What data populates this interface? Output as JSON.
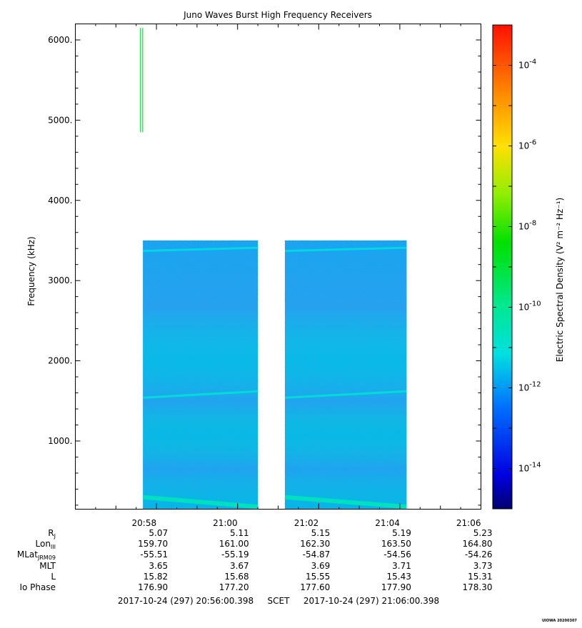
{
  "chart_data": {
    "type": "heatmap",
    "title": "Juno Waves Burst High Frequency Receivers",
    "ylabel": "Frequency (kHz)",
    "ylim": [
      150,
      6200
    ],
    "y_ticks": [
      {
        "value": 1000,
        "label": "1000."
      },
      {
        "value": 2000,
        "label": "2000."
      },
      {
        "value": 3000,
        "label": "3000."
      },
      {
        "value": 4000,
        "label": "4000."
      },
      {
        "value": 5000,
        "label": "5000."
      },
      {
        "value": 6000,
        "label": "6000."
      }
    ],
    "x_ticks": [
      "20:58",
      "21:00",
      "21:02",
      "21:04",
      "21:06"
    ],
    "ephemeris": {
      "labels": [
        {
          "main": "R",
          "sub": "J"
        },
        {
          "main": "Lon",
          "sub": "III"
        },
        {
          "main": "MLat",
          "sub": "JRM09"
        },
        {
          "main": "MLT",
          "sub": ""
        },
        {
          "main": "L",
          "sub": ""
        },
        {
          "main": "Io Phase",
          "sub": ""
        }
      ],
      "rows": [
        [
          "5.07",
          "5.11",
          "5.15",
          "5.19",
          "5.23"
        ],
        [
          "159.70",
          "161.00",
          "162.30",
          "163.50",
          "164.80"
        ],
        [
          "-55.51",
          "-55.19",
          "-54.87",
          "-54.56",
          "-54.26"
        ],
        [
          "3.65",
          "3.67",
          "3.69",
          "3.71",
          "3.73"
        ],
        [
          "15.82",
          "15.68",
          "15.55",
          "15.43",
          "15.31"
        ],
        [
          "176.90",
          "177.20",
          "177.60",
          "177.90",
          "178.30"
        ]
      ]
    },
    "time_range": {
      "start": "2017-10-24 (297) 20:56:00.398",
      "sep": "SCET",
      "end": "2017-10-24 (297) 21:06:00.398"
    },
    "colorbar": {
      "label": "Electric Spectral Density (V² m⁻² Hz⁻¹)",
      "scale": "log",
      "range": [
        1e-15,
        0.001
      ],
      "ticks": [
        {
          "exp": -4,
          "label": "10",
          "sup": "-4"
        },
        {
          "exp": -6,
          "label": "10",
          "sup": "-6"
        },
        {
          "exp": -8,
          "label": "10",
          "sup": "-8"
        },
        {
          "exp": -10,
          "label": "10",
          "sup": "-10"
        },
        {
          "exp": -12,
          "label": "10",
          "sup": "-12"
        },
        {
          "exp": -14,
          "label": "10",
          "sup": "-14"
        }
      ]
    },
    "data_blocks": [
      {
        "t_start": "20:57:40",
        "t_end": "21:00:30",
        "f_min": 150,
        "f_max": 3500,
        "level_exp": -11.8
      },
      {
        "t_start": "21:01:10",
        "t_end": "21:04:10",
        "f_min": 150,
        "f_max": 3500,
        "level_exp": -11.8
      }
    ],
    "emission_lines": [
      {
        "f_start": 3370,
        "f_end": 3410,
        "level_exp": -11.2
      },
      {
        "f_start": 1540,
        "f_end": 1620,
        "level_exp": -11.0
      },
      {
        "f_start": 300,
        "f_end": 180,
        "level_exp": -10.6
      }
    ],
    "spike": {
      "t": "20:57:38",
      "f_min": 4850,
      "f_max": 6150,
      "level_exp": -9
    }
  },
  "footer": {
    "credit": "UIOWA 20200307"
  }
}
